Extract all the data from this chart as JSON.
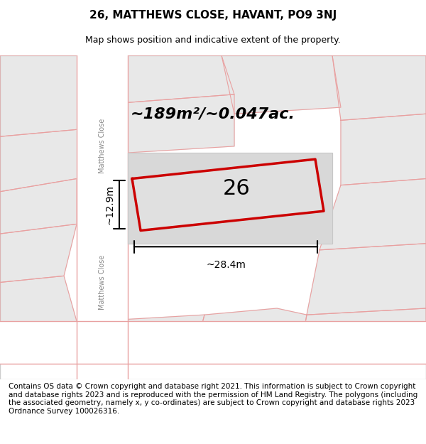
{
  "title": "26, MATTHEWS CLOSE, HAVANT, PO9 3NJ",
  "subtitle": "Map shows position and indicative extent of the property.",
  "area_text": "~189m²/~0.047ac.",
  "number_label": "26",
  "width_label": "~28.4m",
  "height_label": "~12.9m",
  "footer_text": "Contains OS data © Crown copyright and database right 2021. This information is subject to Crown copyright and database rights 2023 and is reproduced with the permission of HM Land Registry. The polygons (including the associated geometry, namely x, y co-ordinates) are subject to Crown copyright and database rights 2023 Ordnance Survey 100026316.",
  "bg_color": "#f5f5f5",
  "map_bg": "#f0f0f0",
  "road_color": "#ffffff",
  "plot_outline_color": "#cc0000",
  "plot_fill_color": "#e8e8e8",
  "block_fill_color": "#e0e0e0",
  "road_line_color": "#e8a0a0",
  "street_name_1": "Matthews Close",
  "street_name_2": "Matthews Close",
  "title_fontsize": 11,
  "subtitle_fontsize": 9,
  "footer_fontsize": 7.5
}
